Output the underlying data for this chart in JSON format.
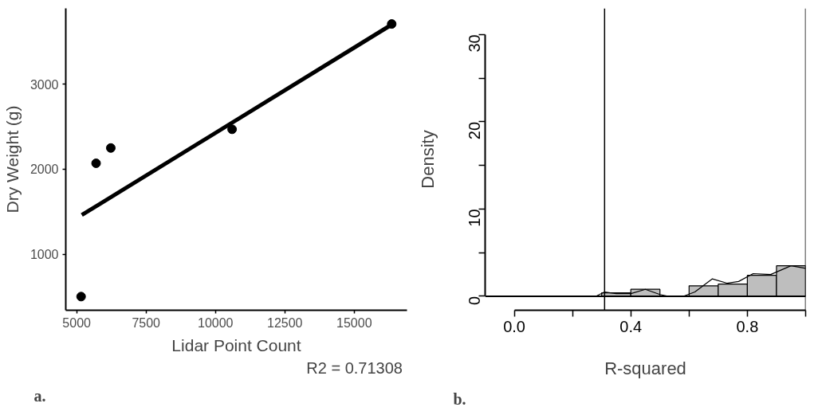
{
  "chart_data": [
    {
      "type": "scatter",
      "xlabel": "Lidar Point Count",
      "ylabel": "Dry Weight (g)",
      "xlim": [
        4608,
        16901
      ],
      "ylim": [
        339,
        3894
      ],
      "xticks": [
        5000,
        7500,
        10000,
        12500,
        15000
      ],
      "yticks": [
        1000,
        2000,
        3000
      ],
      "annotations": [
        "R2 =  0.71308",
        "a."
      ],
      "series": [
        {
          "type": "scatter",
          "x": [
            5160,
            5700,
            6230,
            10600,
            16350
          ],
          "values": [
            500,
            2070,
            2250,
            2470,
            3710
          ],
          "color": "#000000",
          "marker": "circle"
        },
        {
          "type": "line",
          "x": [
            5185,
            16285
          ],
          "values": [
            1460,
            3690
          ],
          "color": "#000000"
        }
      ]
    },
    {
      "type": "histogram",
      "xlabel": "R-squared",
      "ylabel": "Density",
      "xlim": [
        -0.1,
        1.0
      ],
      "ylim": [
        -1.6,
        33
      ],
      "xticks": [
        {
          "value": 0.0,
          "label": "0.0"
        },
        {
          "value": 0.2,
          "label": null
        },
        0.4,
        {
          "value": 0.6,
          "label": null
        },
        0.8,
        {
          "value": 1.0,
          "label": null
        }
      ],
      "yticks": [
        0,
        {
          "value": 5,
          "label": null
        },
        10,
        {
          "value": 15,
          "label": null
        },
        20,
        {
          "value": 25,
          "label": null
        },
        30
      ],
      "bins": [
        0.3,
        0.4,
        0.5,
        0.6,
        0.7,
        0.8,
        0.9,
        1.0
      ],
      "values": [
        0.4,
        0.8,
        0,
        1.2,
        1.4,
        2.4,
        3.5
      ],
      "color": "#bebebe",
      "annotations": [
        "b."
      ],
      "ref_lines": [
        {
          "axis": "x",
          "value": 0.31,
          "label": null,
          "color": "#000000"
        },
        {
          "axis": "x",
          "value": 1.0,
          "label": null,
          "color": "#000000"
        }
      ],
      "series": [
        {
          "type": "line",
          "x": [
            0.0,
            0.28,
            0.31,
            0.35,
            0.4,
            0.45,
            0.5,
            0.53,
            0.58,
            0.62,
            0.68,
            0.73,
            0.77,
            0.82,
            0.88,
            0.95,
            1.0
          ],
          "values": [
            0,
            0,
            0.5,
            0.3,
            0.3,
            0.8,
            0.2,
            0,
            0,
            0.5,
            2.0,
            1.5,
            1.7,
            2.6,
            2.5,
            3.5,
            3.2
          ],
          "color": "#000000"
        }
      ]
    }
  ]
}
